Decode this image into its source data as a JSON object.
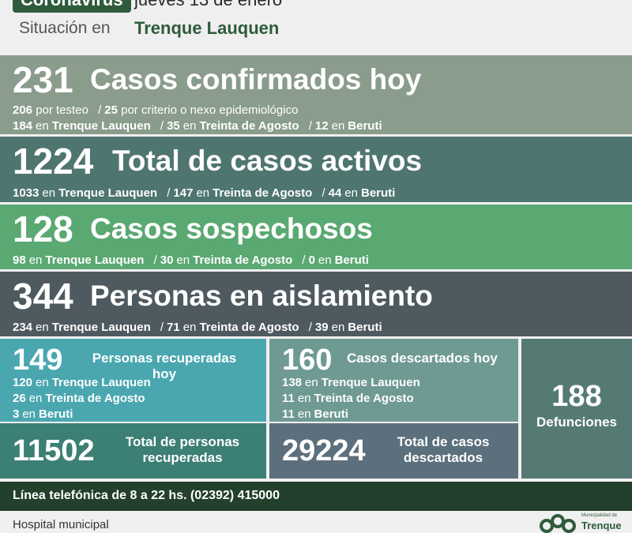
{
  "header": {
    "badge": "Coronavirus",
    "date": "jueves 13 de enero",
    "situation_label": "Situación en",
    "city": "Trenque Lauquen"
  },
  "confirmed": {
    "number": "231",
    "title": "Casos confirmados hoy",
    "testeo": "206",
    "testeo_label": "por testeo",
    "criterio": "25",
    "criterio_label": "por criterio o nexo epidemiológico",
    "tl": "184",
    "ta": "35",
    "be": "12"
  },
  "active": {
    "number": "1224",
    "title": "Total de casos activos",
    "tl": "1033",
    "ta": "147",
    "be": "44"
  },
  "suspect": {
    "number": "128",
    "title": "Casos sospechosos",
    "tl": "98",
    "ta": "30",
    "be": "0"
  },
  "isolation": {
    "number": "344",
    "title": "Personas en aislamiento",
    "tl": "234",
    "ta": "71",
    "be": "39"
  },
  "places": {
    "en": "en",
    "tl": "Trenque Lauquen",
    "ta": "Treinta de Agosto",
    "be": "Beruti"
  },
  "recovered": {
    "number": "149",
    "title": "Personas recuperadas hoy",
    "tl": "120",
    "ta": "26",
    "be": "3",
    "total": "11502",
    "total_label": "Total de personas recuperadas"
  },
  "discarded": {
    "number": "160",
    "title": "Casos descartados hoy",
    "tl": "138",
    "ta": "11",
    "be": "11",
    "total": "29224",
    "total_label": "Total de casos descartados"
  },
  "deaths": {
    "number": "188",
    "label": "Defunciones"
  },
  "phone": "Línea telefónica de 8 a 22 hs. (02392) 415000",
  "footer": {
    "hospital": "Hospital municipal",
    "logo_small": "Municipalidad de",
    "logo_big": "Trenque"
  },
  "colors": {
    "dark_green": "#2e5b3c",
    "panel_confirmed": "#8a9c8c",
    "panel_active": "#4f7570",
    "panel_suspect": "#5aa872",
    "panel_isolation": "#4e5a60",
    "box_recovered": "#4aa7b0",
    "box_discarded": "#6f9a93",
    "box_deaths": "#557a74"
  }
}
